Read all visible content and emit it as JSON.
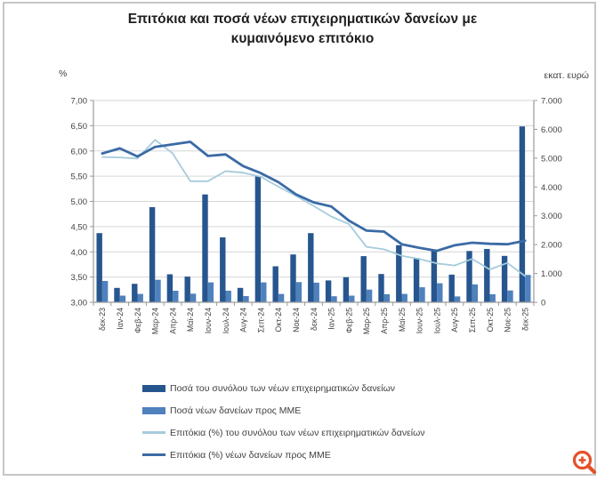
{
  "frame": {
    "border_color": "#c6c6c6",
    "background": "#ffffff"
  },
  "chart_data": {
    "type": "bar",
    "subtype": "combo-bar-line-dual-axis",
    "title": "Επιτόκια και ποσά νέων επιχειρηματικών δανείων με κυμαινόμενο επιτόκιο",
    "grid": true,
    "grid_color": "#d6d6d6",
    "axis_color": "#9b9b9b",
    "text_color": "#3f3f3f",
    "legend_position": "bottom-left",
    "left_axis": {
      "label": "%",
      "min": 3.0,
      "max": 7.0,
      "step": 0.5,
      "tick_labels": [
        "7,00",
        "6,50",
        "6,00",
        "5,50",
        "5,00",
        "4,50",
        "4,00",
        "3,50",
        "3,00"
      ]
    },
    "right_axis": {
      "label": "εκατ. ευρώ",
      "min": 0,
      "max": 7000,
      "step": 1000,
      "tick_labels": [
        "7.000",
        "6.000",
        "5.000",
        "4.000",
        "3.000",
        "2.000",
        "1.000",
        "0"
      ]
    },
    "categories": [
      "δεκ-23",
      "Ιαν-24",
      "Φεβ-24",
      "Μαρ-24",
      "Απρ-24",
      "Μαϊ-24",
      "Ιουν-24",
      "Ιουλ-24",
      "Αυγ-24",
      "Σεπ-24",
      "Οκτ-24",
      "Νοε-24",
      "δεκ-24",
      "Ιαν-25",
      "Φεβ-25",
      "Μαρ-25",
      "Απρ-25",
      "Μαϊ-25",
      "Ιουν-25",
      "Ιουλ-25",
      "Αυγ-25",
      "Σεπ-25",
      "Οκτ-25",
      "Νοε-25",
      "δεκ-25"
    ],
    "series": [
      {
        "name": "Ποσά του συνόλου των νέων επιχειρηματικών δανείων",
        "type": "bar",
        "axis": "right",
        "color": "#27568f",
        "values": [
          2400,
          500,
          640,
          3300,
          970,
          890,
          3740,
          2250,
          500,
          4370,
          1250,
          1660,
          2400,
          760,
          870,
          1600,
          980,
          1980,
          1540,
          1830,
          960,
          1780,
          1850,
          1610,
          6100
        ]
      },
      {
        "name": "Ποσά νέων δανείων προς ΜΜΕ",
        "type": "bar",
        "axis": "right",
        "color": "#4f81bd",
        "values": [
          740,
          230,
          290,
          780,
          400,
          300,
          690,
          400,
          215,
          690,
          290,
          700,
          680,
          210,
          230,
          440,
          280,
          290,
          520,
          660,
          205,
          620,
          280,
          410,
          950
        ]
      },
      {
        "name": "Επιτόκια (%) του συνόλου των νέων επιχειρηματικών δανείων",
        "type": "line",
        "axis": "left",
        "color": "#a6cbdc",
        "line_width": 1.8,
        "values": [
          5.88,
          5.87,
          5.85,
          6.22,
          5.95,
          5.4,
          5.4,
          5.6,
          5.57,
          5.49,
          5.29,
          5.11,
          4.91,
          4.7,
          4.55,
          4.1,
          4.05,
          3.92,
          3.86,
          3.77,
          3.73,
          3.86,
          3.65,
          3.78,
          3.52
        ]
      },
      {
        "name": "Επιτόκια (%) νέων δανείων προς ΜΜΕ",
        "type": "line",
        "axis": "left",
        "color": "#3b6ba5",
        "line_width": 2.8,
        "values": [
          5.95,
          6.05,
          5.89,
          6.08,
          6.13,
          6.18,
          5.9,
          5.93,
          5.7,
          5.56,
          5.38,
          5.14,
          4.98,
          4.9,
          4.62,
          4.42,
          4.4,
          4.15,
          4.08,
          4.02,
          4.13,
          4.18,
          4.16,
          4.15,
          4.22
        ]
      }
    ]
  },
  "icons": {
    "zoom_in": {
      "color": "#e4512a",
      "meaning": "zoom-in magnifier"
    }
  }
}
